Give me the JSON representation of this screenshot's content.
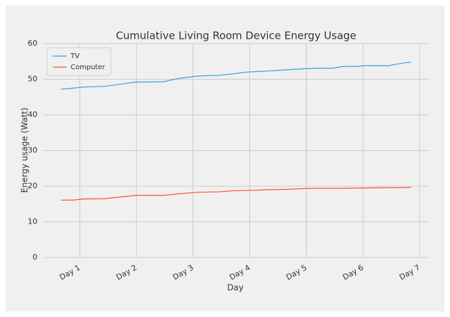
{
  "chart_data": {
    "type": "line",
    "title": "Cumulative Living Room Device Energy Usage",
    "xlabel": "Day",
    "ylabel": "Energy usage (Watt)",
    "x": [
      0.67,
      0.88,
      1.06,
      1.43,
      1.67,
      1.98,
      2.47,
      2.77,
      3.08,
      3.45,
      3.69,
      3.94,
      4.3,
      4.61,
      4.92,
      5.16,
      5.47,
      5.65,
      5.9,
      6.02,
      6.45,
      6.69,
      6.85
    ],
    "series": [
      {
        "name": "TV",
        "color": "#30a2da",
        "values": [
          47.2,
          47.5,
          47.8,
          48.0,
          48.5,
          49.2,
          49.3,
          50.3,
          50.9,
          51.1,
          51.5,
          52.0,
          52.3,
          52.6,
          52.9,
          53.1,
          53.1,
          53.6,
          53.6,
          53.8,
          53.8,
          54.5,
          54.8
        ]
      },
      {
        "name": "Computer",
        "color": "#fc4f30",
        "values": [
          16.1,
          16.1,
          16.4,
          16.5,
          16.9,
          17.4,
          17.4,
          17.9,
          18.3,
          18.4,
          18.7,
          18.8,
          19.0,
          19.1,
          19.3,
          19.4,
          19.4,
          19.4,
          19.5,
          19.5,
          19.6,
          19.6,
          19.7
        ]
      }
    ],
    "xlim": [
      0.35,
      7.17
    ],
    "xticks": [
      {
        "value": 1,
        "label": "Day 1"
      },
      {
        "value": 2,
        "label": "Day 2"
      },
      {
        "value": 3,
        "label": "Day 3"
      },
      {
        "value": 4,
        "label": "Day 4"
      },
      {
        "value": 5,
        "label": "Day 5"
      },
      {
        "value": 6,
        "label": "Day 6"
      },
      {
        "value": 7,
        "label": "Day 7"
      }
    ],
    "ylim": [
      0,
      60
    ],
    "yticks": [
      0,
      10,
      20,
      30,
      40,
      50,
      60
    ],
    "grid": true,
    "legend": "upper left"
  }
}
